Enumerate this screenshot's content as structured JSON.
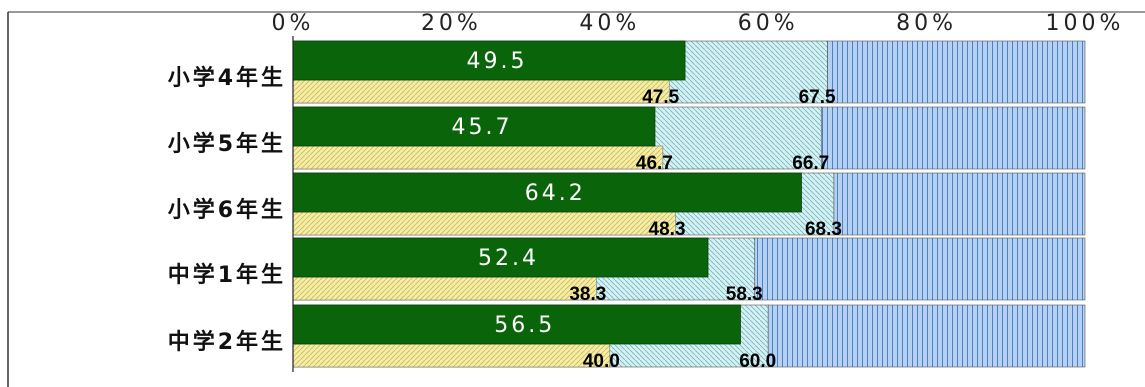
{
  "chart_data": {
    "type": "bar",
    "orientation": "horizontal",
    "stacked": true,
    "categories": [
      "小学4年生",
      "小学5年生",
      "小学6年生",
      "中学1年生",
      "中学2年生"
    ],
    "x_ticks": [
      "0%",
      "20%",
      "40%",
      "60%",
      "80%",
      "100%"
    ],
    "xlim": [
      0,
      100
    ],
    "upper_bar": {
      "values": [
        49.5,
        45.7,
        64.2,
        52.4,
        56.5
      ],
      "labels": [
        "49.5",
        "45.7",
        "64.2",
        "52.4",
        "56.5"
      ],
      "color": "#0a640a"
    },
    "lower_bar": {
      "values": [
        47.5,
        46.7,
        48.3,
        38.3,
        40.0
      ],
      "labels": [
        "47.5",
        "46.7",
        "48.3",
        "38.3",
        "40.0"
      ],
      "color": "#f3ea9c"
    },
    "boundary": {
      "values": [
        67.5,
        66.7,
        68.3,
        58.3,
        60.0
      ],
      "labels": [
        "67.5",
        "66.7",
        "68.3",
        "58.3",
        "60.0"
      ],
      "color": "#bfe6ea"
    },
    "remainder_color": "#a9c8ec",
    "grid": false
  }
}
